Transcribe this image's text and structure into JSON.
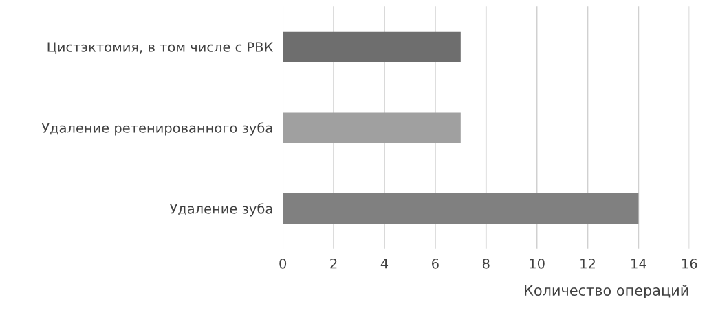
{
  "chart_data": {
    "type": "bar",
    "orientation": "horizontal",
    "categories": [
      "Цистэктомия, в том числе с РВК",
      "Удаление ретенированного зуба",
      "Удаление зуба"
    ],
    "values": [
      7,
      7,
      14
    ],
    "colors": [
      "#6e6e6e",
      "#a0a0a0",
      "#808080"
    ],
    "xlabel": "Количество операций",
    "xlim": [
      0,
      16
    ],
    "xticks": [
      0,
      2,
      4,
      6,
      8,
      10,
      12,
      14,
      16
    ],
    "grid": "x",
    "legend": false
  }
}
